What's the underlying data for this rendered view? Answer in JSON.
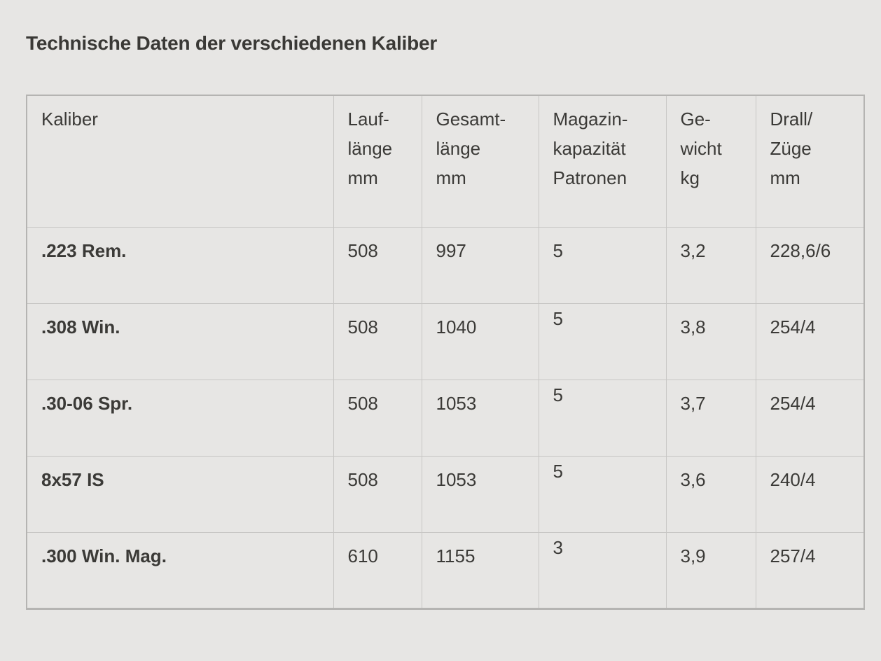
{
  "page": {
    "background_color": "#e7e6e4",
    "text_color": "#3b3a37",
    "border_color_inner": "#c7c6c4",
    "border_color_outer": "#b5b4b2",
    "title": "Technische Daten der verschiedenen Kaliber"
  },
  "table": {
    "columns": [
      {
        "id": "kaliber",
        "label": "Kaliber"
      },
      {
        "id": "lauflaenge",
        "label": "Lauf-\nlänge\nmm"
      },
      {
        "id": "gesamtlaenge",
        "label": "Gesamt-\nlänge\nmm"
      },
      {
        "id": "magazin",
        "label": "Magazin-\nkapazität\nPatronen"
      },
      {
        "id": "gewicht",
        "label": "Ge-\nwicht\nkg"
      },
      {
        "id": "drall",
        "label": "Drall/\nZüge\nmm"
      }
    ],
    "rows": [
      {
        "kaliber": ".223 Rem.",
        "lauflaenge_mm": "508",
        "gesamtlaenge_mm": "997",
        "magazin_patronen": "5",
        "gewicht_kg": "3,2",
        "drall_zuege_mm": "228,6/6"
      },
      {
        "kaliber": ".308 Win.",
        "lauflaenge_mm": "508",
        "gesamtlaenge_mm": "1040",
        "magazin_patronen": "5",
        "gewicht_kg": "3,8",
        "drall_zuege_mm": "254/4"
      },
      {
        "kaliber": ".30-06 Spr.",
        "lauflaenge_mm": "508",
        "gesamtlaenge_mm": "1053",
        "magazin_patronen": "5",
        "gewicht_kg": "3,7",
        "drall_zuege_mm": "254/4"
      },
      {
        "kaliber": "8x57 IS",
        "lauflaenge_mm": "508",
        "gesamtlaenge_mm": "1053",
        "magazin_patronen": "5",
        "gewicht_kg": "3,6",
        "drall_zuege_mm": "240/4"
      },
      {
        "kaliber": ".300 Win. Mag.",
        "lauflaenge_mm": "610",
        "gesamtlaenge_mm": "1155",
        "magazin_patronen": "3",
        "gewicht_kg": "3,9",
        "drall_zuege_mm": "257/4"
      }
    ]
  }
}
